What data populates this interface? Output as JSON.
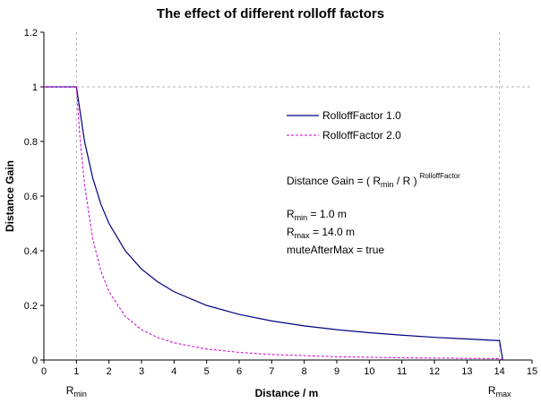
{
  "chart_data": {
    "type": "line",
    "title": "The effect of different rolloff factors",
    "xlabel": "Distance / m",
    "ylabel": "Distance Gain",
    "xlim": [
      0,
      15
    ],
    "ylim": [
      0,
      1.2
    ],
    "x_ticks": [
      0,
      1,
      2,
      3,
      4,
      5,
      6,
      7,
      8,
      9,
      10,
      11,
      12,
      13,
      14,
      15
    ],
    "y_ticks": [
      0,
      0.2,
      0.4,
      0.6,
      0.8,
      1,
      1.2
    ],
    "y_tick_labels": [
      "0",
      "0.2",
      "0.4",
      "0.6",
      "0.8",
      "1",
      "1.2"
    ],
    "grid": "dashed reference lines at x = 1, x = 14 and y = 1",
    "legend_position": "upper-right inside plot",
    "series": [
      {
        "name": "RolloffFactor 1.0",
        "style": "solid",
        "color": "#000080",
        "x": [
          0,
          1,
          1.25,
          1.5,
          1.75,
          2,
          2.5,
          3,
          3.5,
          4,
          5,
          6,
          7,
          8,
          9,
          10,
          11,
          12,
          13,
          14,
          14.05,
          14.1
        ],
        "y": [
          1,
          1,
          0.8,
          0.667,
          0.571,
          0.5,
          0.4,
          0.333,
          0.286,
          0.25,
          0.2,
          0.167,
          0.143,
          0.125,
          0.111,
          0.1,
          0.091,
          0.083,
          0.077,
          0.071,
          0.035,
          0
        ]
      },
      {
        "name": "RolloffFactor 2.0",
        "style": "dashed",
        "color": "#cc00cc",
        "x": [
          0,
          1,
          1.1,
          1.25,
          1.5,
          1.75,
          2,
          2.5,
          3,
          3.5,
          4,
          5,
          6,
          7,
          8,
          9,
          10,
          11,
          12,
          13,
          14,
          14.05,
          14.1
        ],
        "y": [
          1,
          1,
          0.826,
          0.64,
          0.444,
          0.327,
          0.25,
          0.16,
          0.111,
          0.082,
          0.063,
          0.04,
          0.028,
          0.02,
          0.016,
          0.012,
          0.01,
          0.008,
          0.007,
          0.006,
          0.005,
          0.003,
          0
        ]
      }
    ],
    "annotations": {
      "formula": {
        "lead": "Distance Gain = ( R",
        "sub": "min",
        "mid": " / R )",
        "sup": "RolloffFactor"
      },
      "rmin": {
        "sym": "R",
        "sub": "min",
        "rest": " = 1.0 m"
      },
      "rmax": {
        "sym": "R",
        "sub": "max",
        "rest": " = 14.0 m"
      },
      "mute": "muteAfterMax = true"
    },
    "x_markers": [
      {
        "x": 1,
        "sym": "R",
        "sub": "min"
      },
      {
        "x": 14,
        "sym": "R",
        "sub": "max"
      }
    ]
  }
}
